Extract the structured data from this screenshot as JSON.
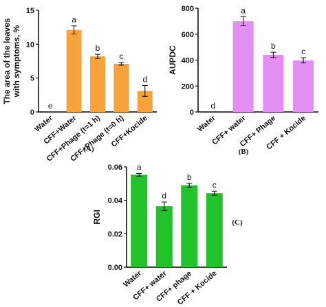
{
  "chart_data": [
    {
      "type": "bar",
      "ylabel": [
        "The area of the leaves",
        "with symptoms, %"
      ],
      "caption": "(A)",
      "categories": [
        "Water",
        "CFF+Water",
        "CFF+Phage (t=1 h)",
        "CFF+Phage (t=0 h)",
        "CFF+Kocide"
      ],
      "values": [
        0,
        12.1,
        8.2,
        7.1,
        3.1
      ],
      "errors": [
        0,
        0.6,
        0.3,
        0.2,
        0.8
      ],
      "letters": [
        "e",
        "a",
        "b",
        "c",
        "d"
      ],
      "color": "#f8a23c",
      "ylim": [
        0,
        15
      ],
      "yticks": [
        0,
        5,
        10,
        15
      ]
    },
    {
      "type": "bar",
      "ylabel": [
        "AUPDC"
      ],
      "caption": "(B)",
      "categories": [
        "Water",
        "CFF+ water",
        "CFF+ Phage",
        "CFF + Kocide"
      ],
      "values": [
        0,
        700,
        440,
        398
      ],
      "errors": [
        0,
        35,
        20,
        20
      ],
      "letters": [
        "d",
        "a",
        "b",
        "c"
      ],
      "color": "#e38ef2",
      "ylim": [
        0,
        800
      ],
      "yticks": [
        0,
        200,
        400,
        600,
        800
      ]
    },
    {
      "type": "bar",
      "ylabel": [
        "RGI"
      ],
      "caption": "(C)",
      "categories": [
        "Water",
        "CFF+ water",
        "CFF+ phage",
        "CFF + Kocide"
      ],
      "values": [
        0.0553,
        0.0365,
        0.049,
        0.0443
      ],
      "errors": [
        0.0008,
        0.0025,
        0.0012,
        0.0012
      ],
      "letters": [
        "a",
        "d",
        "b",
        "c"
      ],
      "color": "#22c22a",
      "ylim": [
        0,
        0.06
      ],
      "yticks": [
        {
          "value": 0,
          "label": "0.00"
        },
        {
          "value": 0.02,
          "label": "0.02"
        },
        {
          "value": 0.04,
          "label": "0.04"
        },
        {
          "value": 0.06,
          "label": "0.06"
        }
      ]
    }
  ]
}
